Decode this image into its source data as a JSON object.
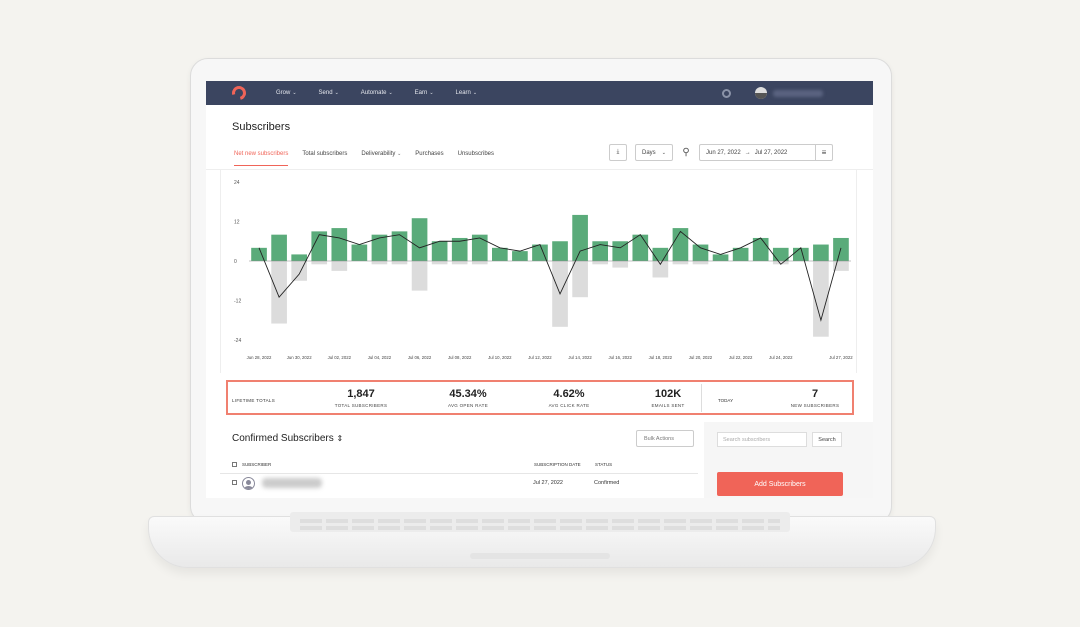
{
  "nav": {
    "items": [
      "Grow",
      "Send",
      "Automate",
      "Earn",
      "Learn"
    ]
  },
  "page_title": "Subscribers",
  "tabs": [
    {
      "label": "Net new subscribers",
      "active": true
    },
    {
      "label": "Total subscribers"
    },
    {
      "label": "Deliverability",
      "dropdown": true
    },
    {
      "label": "Purchases"
    },
    {
      "label": "Unsubscribes"
    }
  ],
  "toolbar": {
    "period": "Days",
    "date_start": "Jun 27, 2022",
    "date_sep": "→",
    "date_end": "Jul 27, 2022"
  },
  "colors": {
    "nav_bg": "#3b4560",
    "accent": "#f06458",
    "positive_bar": "#5aab7a",
    "negative_bar": "#dcdcdc",
    "line": "#222222"
  },
  "chart_data": {
    "type": "bar",
    "ylim": [
      -24,
      24
    ],
    "yticks": [
      24,
      12,
      0,
      -12,
      -24
    ],
    "xtick_labels": [
      "Jun 28, 2022",
      "Jun 30, 2022",
      "Jul 02, 2022",
      "Jul 04, 2022",
      "Jul 06, 2022",
      "Jul 08, 2022",
      "Jul 10, 2022",
      "Jul 12, 2022",
      "Jul 14, 2022",
      "Jul 16, 2022",
      "Jul 18, 2022",
      "Jul 20, 2022",
      "Jul 22, 2022",
      "Jul 24, 2022",
      "Jul 27, 2022"
    ],
    "series": [
      {
        "values": [
          4,
          8,
          2,
          9,
          10,
          5,
          8,
          9,
          13,
          6,
          7,
          8,
          4,
          3,
          5,
          6,
          14,
          6,
          6,
          8,
          4,
          10,
          5,
          2,
          4,
          7,
          4,
          4,
          5,
          7
        ]
      },
      {
        "values": [
          0,
          -19,
          -6,
          -1,
          -3,
          0,
          -1,
          -1,
          -9,
          -1,
          -1,
          -1,
          0,
          0,
          0,
          -20,
          -11,
          -1,
          -2,
          0,
          -5,
          -1,
          -1,
          0,
          0,
          0,
          -1,
          0,
          -23,
          -3
        ]
      },
      {
        "values": [
          4,
          -11,
          -4,
          8,
          7,
          5,
          7,
          8,
          4,
          6,
          6,
          7,
          4,
          3,
          5,
          -10,
          3,
          5,
          4,
          8,
          -1,
          9,
          4,
          2,
          4,
          7,
          -1,
          4,
          -18,
          4
        ]
      }
    ]
  },
  "totals": {
    "lifetime_label": "LIFETIME TOTALS",
    "stats": [
      {
        "value": "1,847",
        "label": "TOTAL SUBSCRIBERS"
      },
      {
        "value": "45.34%",
        "label": "AVG OPEN RATE"
      },
      {
        "value": "4.62%",
        "label": "AVG CLICK RATE"
      },
      {
        "value": "102K",
        "label": "EMAILS SENT"
      }
    ],
    "today_label": "TODAY",
    "today_value": "7",
    "today_stat_label": "NEW SUBSCRIBERS"
  },
  "subscribers": {
    "title": "Confirmed Subscribers",
    "sort_icon": "⇕",
    "bulk_actions": "Bulk Actions",
    "columns": [
      "SUBSCRIBER",
      "SUBSCRIPTION DATE",
      "STATUS"
    ],
    "rows": [
      {
        "date": "Jul 27, 2022",
        "status": "Confirmed"
      }
    ]
  },
  "sidebar": {
    "search_placeholder": "Search subscribers",
    "search_button": "Search",
    "add_button": "Add Subscribers"
  }
}
